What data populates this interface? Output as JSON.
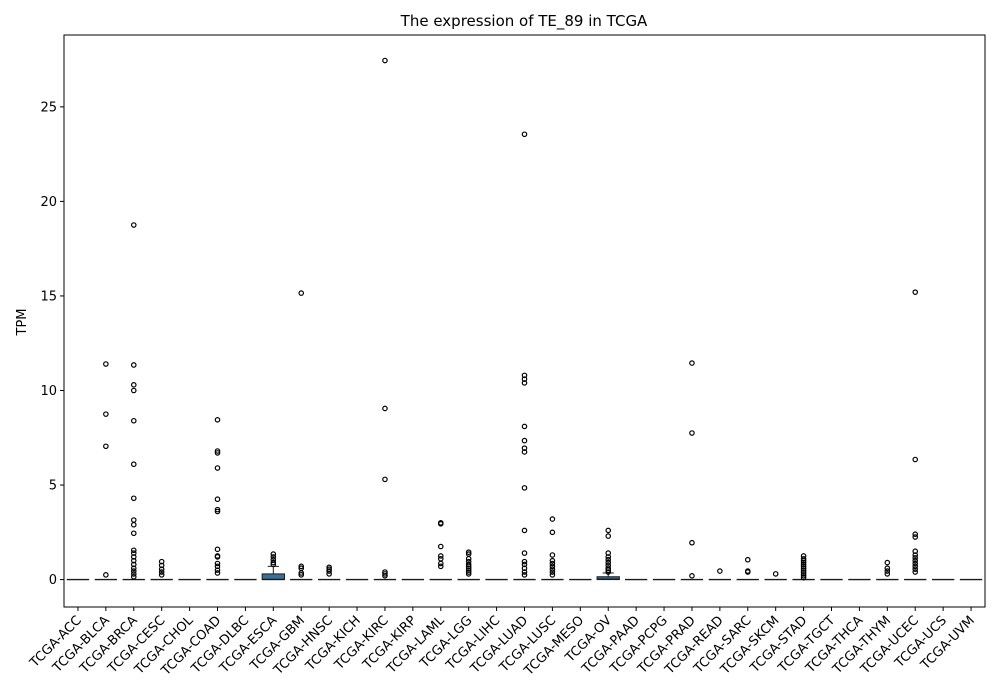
{
  "chart_data": {
    "type": "box",
    "title": "The expression of TE_89 in TCGA",
    "xlabel": "",
    "ylabel": "TPM",
    "ylim": [
      -1.45,
      28.8
    ],
    "yticks": [
      0,
      5,
      10,
      15,
      20,
      25
    ],
    "box_color": "#3a6f99",
    "categories": [
      "TCGA-ACC",
      "TCGA-BLCA",
      "TCGA-BRCA",
      "TCGA-CESC",
      "TCGA-CHOL",
      "TCGA-COAD",
      "TCGA-DLBC",
      "TCGA-ESCA",
      "TCGA-GBM",
      "TCGA-HNSC",
      "TCGA-KICH",
      "TCGA-KIRC",
      "TCGA-KIRP",
      "TCGA-LAML",
      "TCGA-LGG",
      "TCGA-LIHC",
      "TCGA-LUAD",
      "TCGA-LUSC",
      "TCGA-MESO",
      "TCGA-OV",
      "TCGA-PAAD",
      "TCGA-PCPG",
      "TCGA-PRAD",
      "TCGA-READ",
      "TCGA-SARC",
      "TCGA-SKCM",
      "TCGA-STAD",
      "TCGA-TGCT",
      "TCGA-THCA",
      "TCGA-THYM",
      "TCGA-UCEC",
      "TCGA-UCS",
      "TCGA-UVM"
    ],
    "boxes": [
      {
        "q1": 0,
        "median": 0,
        "q3": 0,
        "whislo": 0,
        "whishi": 0,
        "outliers": []
      },
      {
        "q1": 0,
        "median": 0,
        "q3": 0,
        "whislo": 0,
        "whishi": 0,
        "outliers": [
          11.4,
          8.75,
          7.05,
          0.25
        ]
      },
      {
        "q1": 0,
        "median": 0,
        "q3": 0,
        "whislo": 0,
        "whishi": 0,
        "outliers": [
          18.75,
          11.35,
          10.3,
          10.0,
          8.4,
          6.1,
          4.3,
          3.15,
          2.9,
          2.45,
          1.55,
          1.4,
          1.2,
          1.0,
          0.8,
          0.6,
          0.45,
          0.3,
          0.15
        ]
      },
      {
        "q1": 0,
        "median": 0,
        "q3": 0,
        "whislo": 0,
        "whishi": 0,
        "outliers": [
          0.95,
          0.75,
          0.55,
          0.4,
          0.25
        ]
      },
      {
        "q1": 0,
        "median": 0,
        "q3": 0,
        "whislo": 0,
        "whishi": 0,
        "outliers": []
      },
      {
        "q1": 0,
        "median": 0,
        "q3": 0,
        "whislo": 0,
        "whishi": 0,
        "outliers": [
          8.45,
          6.8,
          6.7,
          5.9,
          4.25,
          3.7,
          3.6,
          1.6,
          1.25,
          1.2,
          0.85,
          0.7,
          0.5,
          0.35
        ]
      },
      {
        "q1": 0,
        "median": 0,
        "q3": 0,
        "whislo": 0,
        "whishi": 0,
        "outliers": []
      },
      {
        "q1": 0,
        "median": 0.01,
        "q3": 0.3,
        "whislo": 0,
        "whishi": 0.7,
        "outliers": [
          1.35,
          1.2,
          1.05,
          0.9,
          0.8
        ]
      },
      {
        "q1": 0,
        "median": 0,
        "q3": 0,
        "whislo": 0,
        "whishi": 0,
        "outliers": [
          15.15,
          0.7,
          0.6,
          0.35,
          0.25
        ]
      },
      {
        "q1": 0,
        "median": 0,
        "q3": 0,
        "whislo": 0,
        "whishi": 0,
        "outliers": [
          0.65,
          0.55,
          0.45,
          0.3
        ]
      },
      {
        "q1": 0,
        "median": 0,
        "q3": 0,
        "whislo": 0,
        "whishi": 0,
        "outliers": []
      },
      {
        "q1": 0,
        "median": 0,
        "q3": 0,
        "whislo": 0,
        "whishi": 0,
        "outliers": [
          27.45,
          9.05,
          5.3,
          0.4,
          0.3,
          0.2
        ]
      },
      {
        "q1": 0,
        "median": 0,
        "q3": 0,
        "whislo": 0,
        "whishi": 0,
        "outliers": []
      },
      {
        "q1": 0,
        "median": 0,
        "q3": 0,
        "whislo": 0,
        "whishi": 0,
        "outliers": [
          3.0,
          2.95,
          1.75,
          1.25,
          1.1,
          0.85,
          0.7
        ]
      },
      {
        "q1": 0,
        "median": 0,
        "q3": 0,
        "whislo": 0,
        "whishi": 0,
        "outliers": [
          1.45,
          1.35,
          1.1,
          0.95,
          0.8,
          0.7,
          0.6,
          0.5,
          0.4,
          0.3
        ]
      },
      {
        "q1": 0,
        "median": 0,
        "q3": 0,
        "whislo": 0,
        "whishi": 0,
        "outliers": []
      },
      {
        "q1": 0,
        "median": 0,
        "q3": 0,
        "whislo": 0,
        "whishi": 0,
        "outliers": [
          23.55,
          10.8,
          10.6,
          10.4,
          8.1,
          7.35,
          6.95,
          6.75,
          4.85,
          2.6,
          1.4,
          0.95,
          0.8,
          0.6,
          0.4,
          0.25
        ]
      },
      {
        "q1": 0,
        "median": 0,
        "q3": 0,
        "whislo": 0,
        "whishi": 0,
        "outliers": [
          3.2,
          2.5,
          1.3,
          1.0,
          0.85,
          0.7,
          0.55,
          0.4,
          0.25
        ]
      },
      {
        "q1": 0,
        "median": 0,
        "q3": 0,
        "whislo": 0,
        "whishi": 0,
        "outliers": []
      },
      {
        "q1": 0,
        "median": 0.02,
        "q3": 0.15,
        "whislo": 0,
        "whishi": 0.35,
        "outliers": [
          2.6,
          2.3,
          1.4,
          1.2,
          1.05,
          0.9,
          0.75,
          0.6,
          0.5,
          0.4
        ]
      },
      {
        "q1": 0,
        "median": 0,
        "q3": 0,
        "whislo": 0,
        "whishi": 0,
        "outliers": []
      },
      {
        "q1": 0,
        "median": 0,
        "q3": 0,
        "whislo": 0,
        "whishi": 0,
        "outliers": []
      },
      {
        "q1": 0,
        "median": 0,
        "q3": 0,
        "whislo": 0,
        "whishi": 0,
        "outliers": [
          11.45,
          7.75,
          1.95,
          0.2
        ]
      },
      {
        "q1": 0,
        "median": 0,
        "q3": 0,
        "whislo": 0,
        "whishi": 0,
        "outliers": [
          0.45
        ]
      },
      {
        "q1": 0,
        "median": 0,
        "q3": 0,
        "whislo": 0,
        "whishi": 0,
        "outliers": [
          1.05,
          0.45,
          0.4
        ]
      },
      {
        "q1": 0,
        "median": 0,
        "q3": 0,
        "whislo": 0,
        "whishi": 0,
        "outliers": [
          0.3
        ]
      },
      {
        "q1": 0,
        "median": 0,
        "q3": 0,
        "whislo": 0,
        "whishi": 0,
        "outliers": [
          1.25,
          1.1,
          1.0,
          0.9,
          0.8,
          0.7,
          0.6,
          0.5,
          0.4,
          0.3,
          0.2,
          0.1
        ]
      },
      {
        "q1": 0,
        "median": 0,
        "q3": 0,
        "whislo": 0,
        "whishi": 0,
        "outliers": []
      },
      {
        "q1": 0,
        "median": 0,
        "q3": 0,
        "whislo": 0,
        "whishi": 0,
        "outliers": []
      },
      {
        "q1": 0,
        "median": 0,
        "q3": 0,
        "whislo": 0,
        "whishi": 0,
        "outliers": [
          0.9,
          0.6,
          0.45,
          0.3
        ]
      },
      {
        "q1": 0,
        "median": 0,
        "q3": 0,
        "whislo": 0,
        "whishi": 0,
        "outliers": [
          15.2,
          6.35,
          2.4,
          2.25,
          1.5,
          1.3,
          1.15,
          1.0,
          0.85,
          0.7,
          0.55,
          0.4
        ]
      },
      {
        "q1": 0,
        "median": 0,
        "q3": 0,
        "whislo": 0,
        "whishi": 0,
        "outliers": []
      },
      {
        "q1": 0,
        "median": 0,
        "q3": 0,
        "whislo": 0,
        "whishi": 0,
        "outliers": []
      }
    ],
    "grid": false,
    "legend": "none"
  }
}
